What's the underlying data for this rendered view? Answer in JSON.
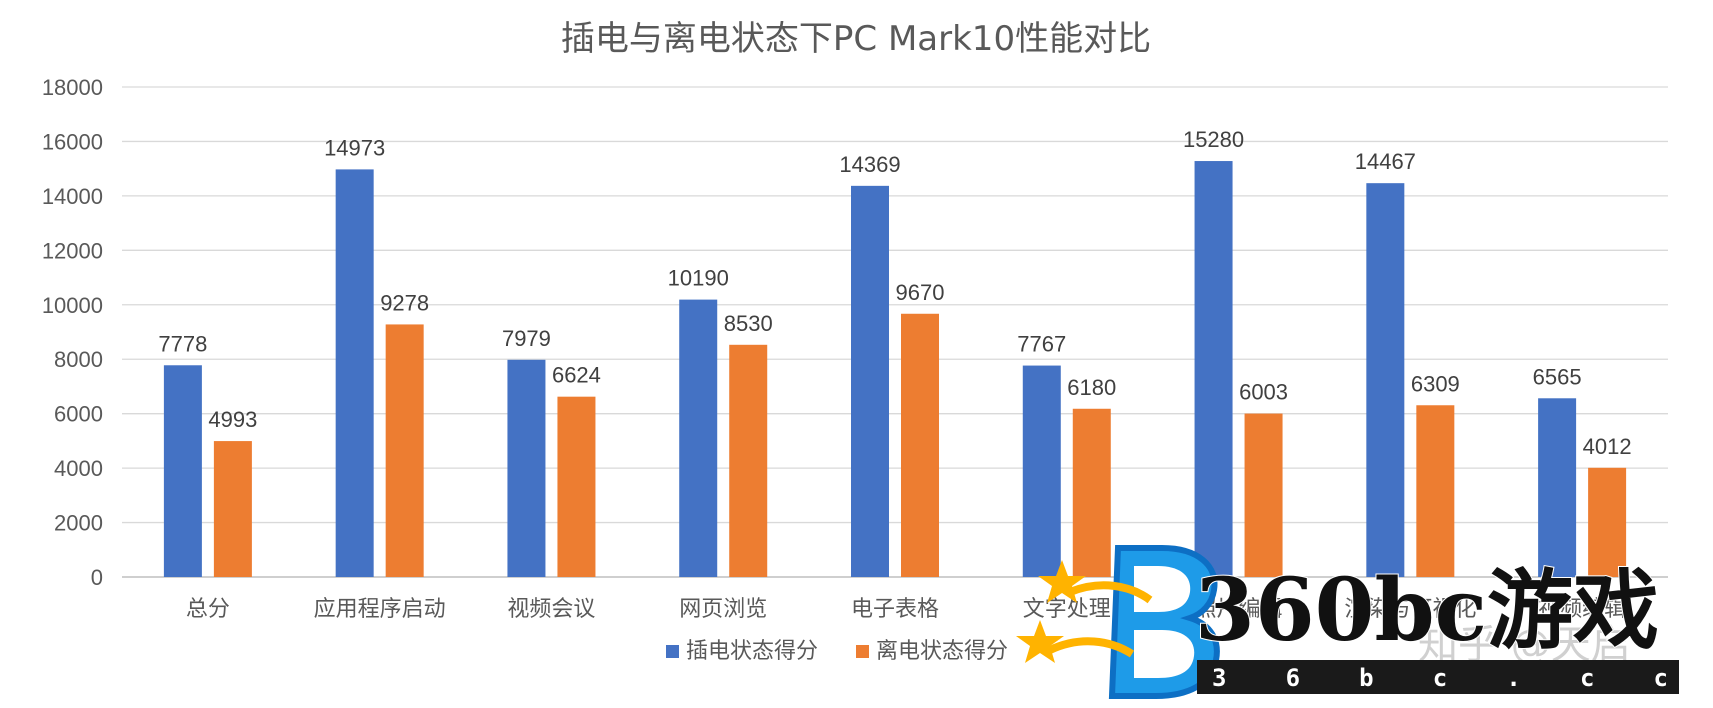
{
  "chart_data": {
    "type": "bar",
    "title": "插电与离电状态下PC Mark10性能对比",
    "xlabel": "",
    "ylabel": "",
    "ylim": [
      0,
      18000
    ],
    "yticks": [
      0,
      2000,
      4000,
      6000,
      8000,
      10000,
      12000,
      14000,
      16000,
      18000
    ],
    "grid": true,
    "legend_position": "bottom",
    "categories": [
      "总分",
      "应用程序启动",
      "视频会议",
      "网页浏览",
      "电子表格",
      "文字处理",
      "照片编辑",
      "渲染与可视化",
      "视频编辑"
    ],
    "series": [
      {
        "name": "插电状态得分",
        "color": "#4472c4",
        "values": [
          7778,
          14973,
          7979,
          10190,
          14369,
          7767,
          15280,
          14467,
          6565
        ]
      },
      {
        "name": "离电状态得分",
        "color": "#ed7d31",
        "values": [
          4993,
          9278,
          6624,
          8530,
          9670,
          6180,
          6003,
          6309,
          4012
        ]
      }
    ]
  },
  "watermark": {
    "brand_text": "360bc游戏",
    "url_text": "3 6 b c . c c",
    "zhihu_text": "知乎 @天启",
    "logo_icon": "blue-b-star-logo-icon"
  }
}
